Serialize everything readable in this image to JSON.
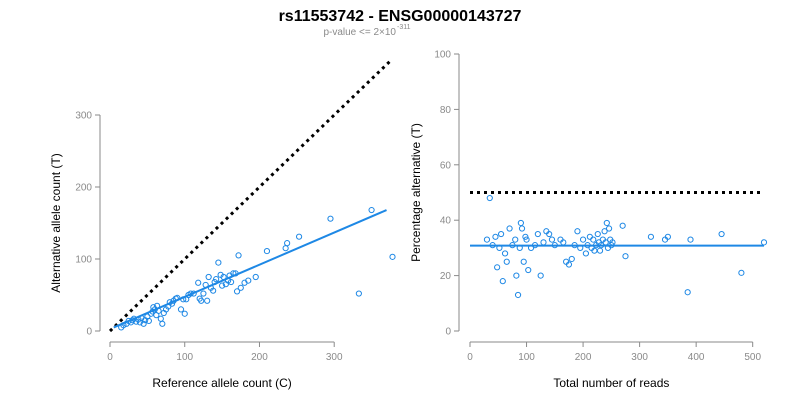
{
  "figure": {
    "title": "rs11553742 - ENSG00000143727",
    "subtitle_prefix": "p-value <= 2×10",
    "subtitle_exponent": "-311",
    "point_color": "#1e88e5",
    "fit_color": "#1e88e5",
    "reference_color": "#000000"
  },
  "chart_data": [
    {
      "type": "scatter",
      "xlabel": "Reference allele count (C)",
      "ylabel": "Alternative allele count (T)",
      "xlim": [
        0,
        380
      ],
      "ylim": [
        0,
        300
      ],
      "xticks": [
        0,
        100,
        200,
        300
      ],
      "yticks": [
        0,
        100,
        200,
        300
      ],
      "grid": false,
      "reference_line": {
        "style": "dotted",
        "points": [
          [
            0,
            0
          ],
          [
            375,
            375
          ]
        ]
      },
      "fit_line": {
        "points": [
          [
            5,
            5
          ],
          [
            370,
            168
          ]
        ]
      },
      "points": [
        [
          15,
          5
        ],
        [
          18,
          8
        ],
        [
          22,
          10
        ],
        [
          25,
          14
        ],
        [
          28,
          12
        ],
        [
          30,
          15
        ],
        [
          32,
          17
        ],
        [
          35,
          13
        ],
        [
          38,
          16
        ],
        [
          40,
          12
        ],
        [
          42,
          18
        ],
        [
          45,
          10
        ],
        [
          47,
          15
        ],
        [
          50,
          20
        ],
        [
          52,
          14
        ],
        [
          55,
          24
        ],
        [
          57,
          27
        ],
        [
          58,
          33
        ],
        [
          60,
          30
        ],
        [
          62,
          22
        ],
        [
          63,
          35
        ],
        [
          65,
          28
        ],
        [
          68,
          17
        ],
        [
          70,
          10
        ],
        [
          72,
          25
        ],
        [
          75,
          30
        ],
        [
          78,
          34
        ],
        [
          80,
          40
        ],
        [
          83,
          38
        ],
        [
          85,
          42
        ],
        [
          88,
          45
        ],
        [
          90,
          46
        ],
        [
          95,
          30
        ],
        [
          98,
          44
        ],
        [
          100,
          24
        ],
        [
          102,
          44
        ],
        [
          105,
          50
        ],
        [
          108,
          52
        ],
        [
          112,
          52
        ],
        [
          118,
          67
        ],
        [
          120,
          45
        ],
        [
          122,
          42
        ],
        [
          125,
          52
        ],
        [
          128,
          64
        ],
        [
          130,
          42
        ],
        [
          132,
          75
        ],
        [
          135,
          60
        ],
        [
          138,
          56
        ],
        [
          140,
          68
        ],
        [
          142,
          72
        ],
        [
          145,
          95
        ],
        [
          148,
          78
        ],
        [
          150,
          63
        ],
        [
          152,
          75
        ],
        [
          155,
          65
        ],
        [
          158,
          70
        ],
        [
          160,
          77
        ],
        [
          162,
          68
        ],
        [
          165,
          80
        ],
        [
          168,
          80
        ],
        [
          170,
          55
        ],
        [
          172,
          105
        ],
        [
          175,
          60
        ],
        [
          180,
          67
        ],
        [
          185,
          70
        ],
        [
          195,
          75
        ],
        [
          210,
          111
        ],
        [
          235,
          115
        ],
        [
          237,
          122
        ],
        [
          253,
          131
        ],
        [
          295,
          156
        ],
        [
          333,
          52
        ],
        [
          350,
          168
        ],
        [
          378,
          103
        ]
      ]
    },
    {
      "type": "scatter",
      "xlabel": "Total number of reads",
      "ylabel": "Percentage alternative (T)",
      "xlim": [
        0,
        520
      ],
      "ylim": [
        0,
        100
      ],
      "xticks": [
        0,
        100,
        200,
        300,
        400,
        500
      ],
      "yticks": [
        0,
        20,
        40,
        60,
        80,
        100
      ],
      "grid": false,
      "reference_line": {
        "style": "dotted",
        "points": [
          [
            0,
            50
          ],
          [
            520,
            50
          ]
        ]
      },
      "fit_line": {
        "points": [
          [
            0,
            30.8
          ],
          [
            520,
            30.8
          ]
        ]
      },
      "points": [
        [
          30,
          33
        ],
        [
          35,
          48
        ],
        [
          40,
          31
        ],
        [
          45,
          34
        ],
        [
          48,
          23
        ],
        [
          52,
          30
        ],
        [
          55,
          35
        ],
        [
          58,
          18
        ],
        [
          62,
          28
        ],
        [
          65,
          25
        ],
        [
          70,
          37
        ],
        [
          75,
          31
        ],
        [
          80,
          33
        ],
        [
          82,
          20
        ],
        [
          85,
          13
        ],
        [
          88,
          30
        ],
        [
          90,
          39
        ],
        [
          92,
          37
        ],
        [
          95,
          25
        ],
        [
          98,
          34
        ],
        [
          100,
          33
        ],
        [
          103,
          22
        ],
        [
          108,
          30
        ],
        [
          115,
          31
        ],
        [
          120,
          35
        ],
        [
          125,
          20
        ],
        [
          130,
          32
        ],
        [
          135,
          36
        ],
        [
          140,
          35
        ],
        [
          145,
          33
        ],
        [
          150,
          31
        ],
        [
          160,
          33
        ],
        [
          165,
          32
        ],
        [
          170,
          25
        ],
        [
          175,
          24
        ],
        [
          180,
          26
        ],
        [
          185,
          31
        ],
        [
          190,
          36
        ],
        [
          195,
          30
        ],
        [
          200,
          33
        ],
        [
          205,
          28
        ],
        [
          208,
          31
        ],
        [
          212,
          34
        ],
        [
          215,
          30
        ],
        [
          218,
          33
        ],
        [
          220,
          29
        ],
        [
          223,
          31
        ],
        [
          226,
          35
        ],
        [
          228,
          32
        ],
        [
          230,
          29
        ],
        [
          232,
          31
        ],
        [
          235,
          33
        ],
        [
          238,
          36
        ],
        [
          240,
          32
        ],
        [
          242,
          39
        ],
        [
          244,
          30
        ],
        [
          246,
          37
        ],
        [
          248,
          33
        ],
        [
          250,
          31
        ],
        [
          252,
          32
        ],
        [
          270,
          38
        ],
        [
          275,
          27
        ],
        [
          320,
          34
        ],
        [
          345,
          33
        ],
        [
          350,
          34
        ],
        [
          385,
          14
        ],
        [
          390,
          33
        ],
        [
          445,
          35
        ],
        [
          480,
          21
        ],
        [
          520,
          32
        ]
      ]
    }
  ]
}
